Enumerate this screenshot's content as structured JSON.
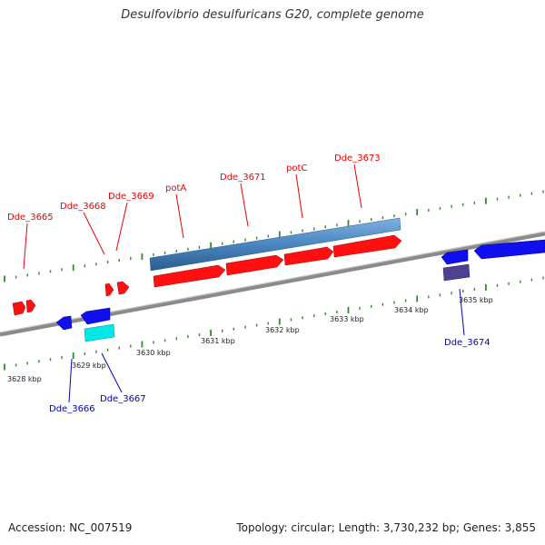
{
  "title": "Desulfovibrio desulfuricans G20, complete genome",
  "footer": {
    "accession": "Accession: NC_007519",
    "summary": "Topology: circular; Length: 3,730,232 bp; Genes: 3,855"
  },
  "colors": {
    "forward_gene": "#ff0000",
    "reverse_gene": "#0000ff",
    "operon_bar": "#4a86c0",
    "cyan_gene": "#00e5e5",
    "purple_gene": "#4a3d8f",
    "tick": "#2e8b2e",
    "label_forward": "#ff0000",
    "label_reverse": "#0000bb",
    "backbone": "#808080"
  },
  "axis": {
    "kbp_labels": [
      "3628 kbp",
      "3629 kbp",
      "3630 kbp",
      "3631 kbp",
      "3632 kbp",
      "3633 kbp",
      "3634 kbp",
      "3635 kbp"
    ]
  },
  "genes": {
    "forward_labels": [
      "Dde_3665",
      "Dde_3668",
      "Dde_3669",
      "potA",
      "Dde_3671",
      "potC",
      "Dde_3673"
    ],
    "reverse_labels": [
      "Dde_3666",
      "Dde_3667",
      "Dde_3674"
    ]
  }
}
